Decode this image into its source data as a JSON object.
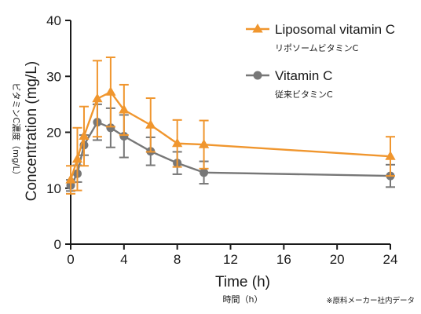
{
  "chart_data": {
    "type": "line",
    "xlabel": "Time (h)",
    "xlabel_sub": "時間（h）",
    "ylabel": "Concentration (mg/L)",
    "ylabel_sub": "ビタミンC濃度（mg/L）",
    "xlim": [
      0,
      24
    ],
    "ylim": [
      0,
      40
    ],
    "xticks": [
      0,
      4,
      8,
      12,
      16,
      20,
      24
    ],
    "yticks": [
      0,
      10,
      20,
      30,
      40
    ],
    "grid": false,
    "legend": "top-right",
    "note": "※原料メーカー社内データ",
    "series": [
      {
        "name": "Liposomal vitamin C",
        "name_sub": "リポソームビタミンC",
        "color": "#f0962e",
        "marker": "triangle",
        "x": [
          0,
          0.5,
          1,
          2,
          3,
          4,
          6,
          8,
          10,
          24
        ],
        "y": [
          11.5,
          15.2,
          19.3,
          26.0,
          27.2,
          24.0,
          21.3,
          18.0,
          17.8,
          15.7
        ],
        "err": [
          2.5,
          5.6,
          5.3,
          6.8,
          6.2,
          4.5,
          4.8,
          4.2,
          4.3,
          3.5
        ]
      },
      {
        "name": "Vitamin C",
        "name_sub": "従来ビタミンC",
        "color": "#777777",
        "marker": "circle",
        "x": [
          0,
          0.5,
          1,
          2,
          3,
          4,
          6,
          8,
          10,
          24
        ],
        "y": [
          10.5,
          12.6,
          17.7,
          21.8,
          20.8,
          19.3,
          16.6,
          14.5,
          12.8,
          12.2
        ],
        "err": [
          1.0,
          1.5,
          1.8,
          3.2,
          3.5,
          3.8,
          2.5,
          2.0,
          2.0,
          2.0
        ]
      }
    ]
  }
}
